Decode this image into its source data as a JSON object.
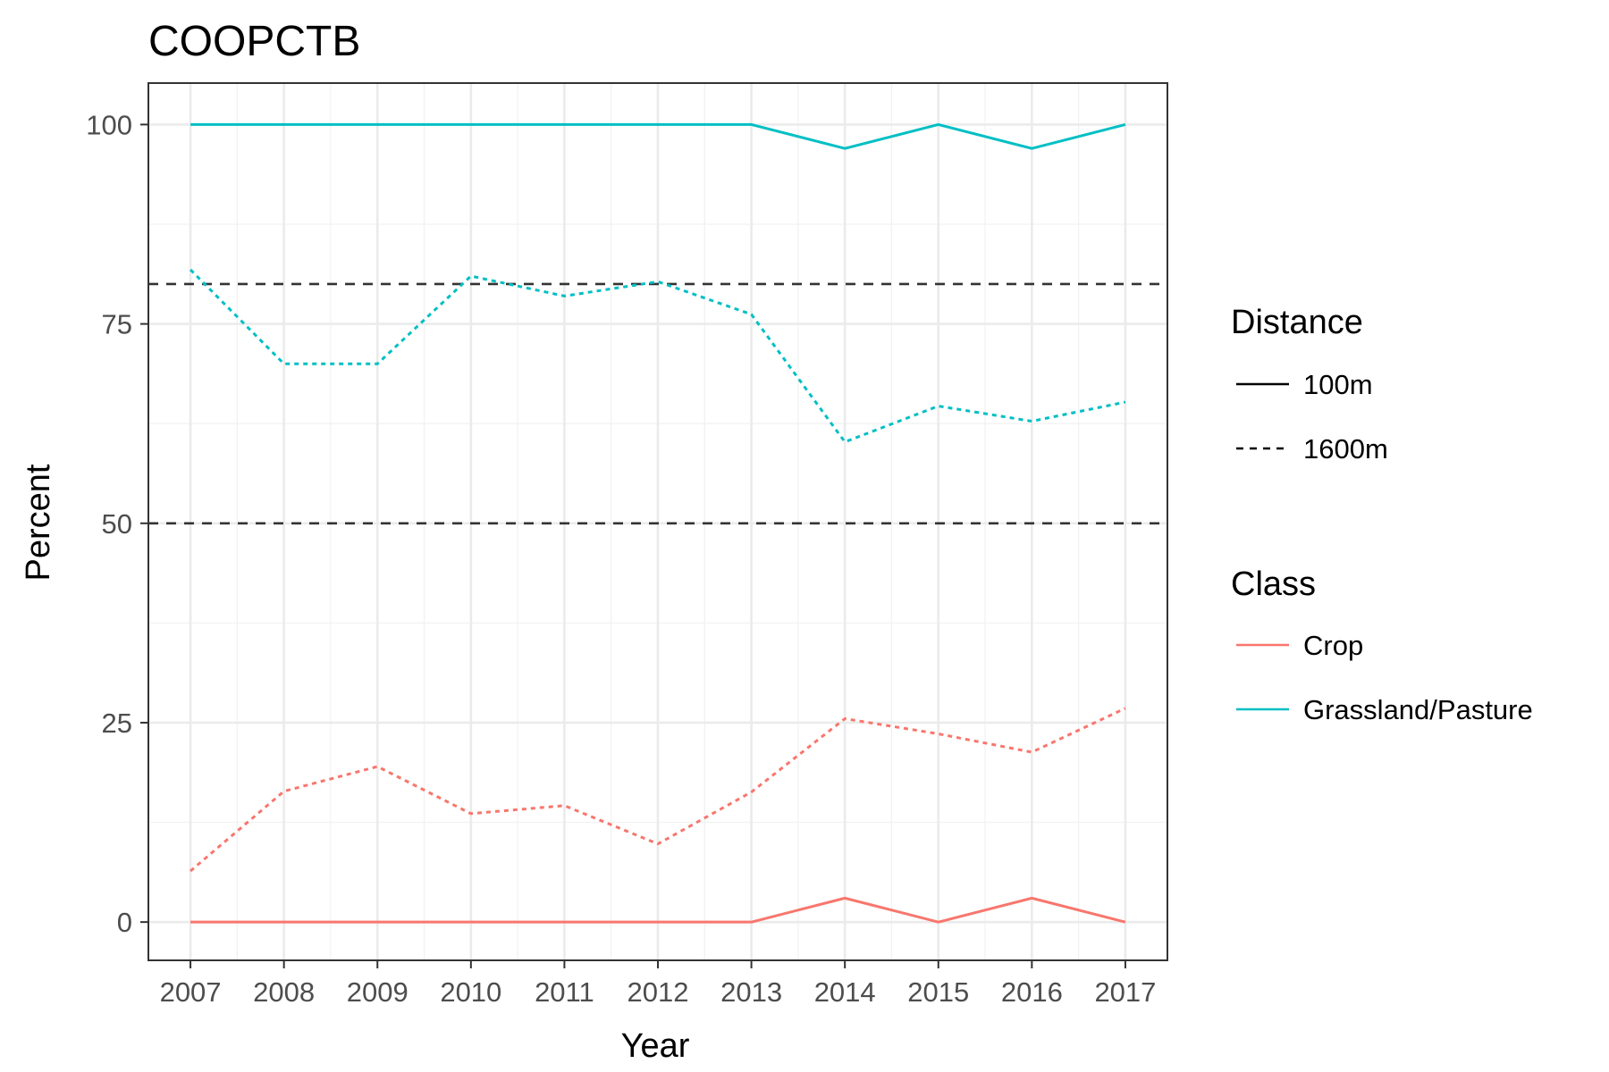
{
  "chart_data": {
    "type": "line",
    "title": "COOPCTB",
    "xlabel": "Year",
    "ylabel": "Percent",
    "x": [
      2007,
      2008,
      2009,
      2010,
      2011,
      2012,
      2013,
      2014,
      2015,
      2016,
      2017
    ],
    "x_ticks": [
      "2007",
      "2008",
      "2009",
      "2010",
      "2011",
      "2012",
      "2013",
      "2014",
      "2015",
      "2016",
      "2017"
    ],
    "y_ticks": [
      0,
      25,
      50,
      75,
      100
    ],
    "y_tick_labels": [
      "0",
      "25",
      "50",
      "75",
      "100"
    ],
    "xlim": [
      2006.55,
      2017.45
    ],
    "ylim": [
      -4.8,
      105.2
    ],
    "grid": true,
    "reference_lines": [
      80,
      50
    ],
    "legends": [
      {
        "title": "Distance",
        "entries": [
          "100m",
          "1600m"
        ]
      },
      {
        "title": "Class",
        "entries": [
          "Crop",
          "Grassland/Pasture"
        ]
      }
    ],
    "legend_position": "right",
    "colors": {
      "Crop": "#F8766D",
      "Grassland/Pasture": "#00BFC4"
    },
    "series": [
      {
        "class": "Grassland/Pasture",
        "distance": "100m",
        "values": [
          100,
          100,
          100,
          100,
          100,
          100,
          100,
          97,
          100,
          97,
          100
        ]
      },
      {
        "class": "Grassland/Pasture",
        "distance": "1600m",
        "values": [
          81.8,
          70,
          70,
          81,
          78.5,
          80.3,
          76.2,
          60.2,
          64.7,
          62.8,
          65.2
        ]
      },
      {
        "class": "Crop",
        "distance": "1600m",
        "values": [
          6.4,
          16.4,
          19.5,
          13.6,
          14.6,
          9.8,
          16.3,
          25.5,
          23.6,
          21.3,
          26.8
        ]
      },
      {
        "class": "Crop",
        "distance": "100m",
        "values": [
          0,
          0,
          0,
          0,
          0,
          0,
          0,
          3,
          0,
          3,
          0
        ]
      }
    ]
  }
}
